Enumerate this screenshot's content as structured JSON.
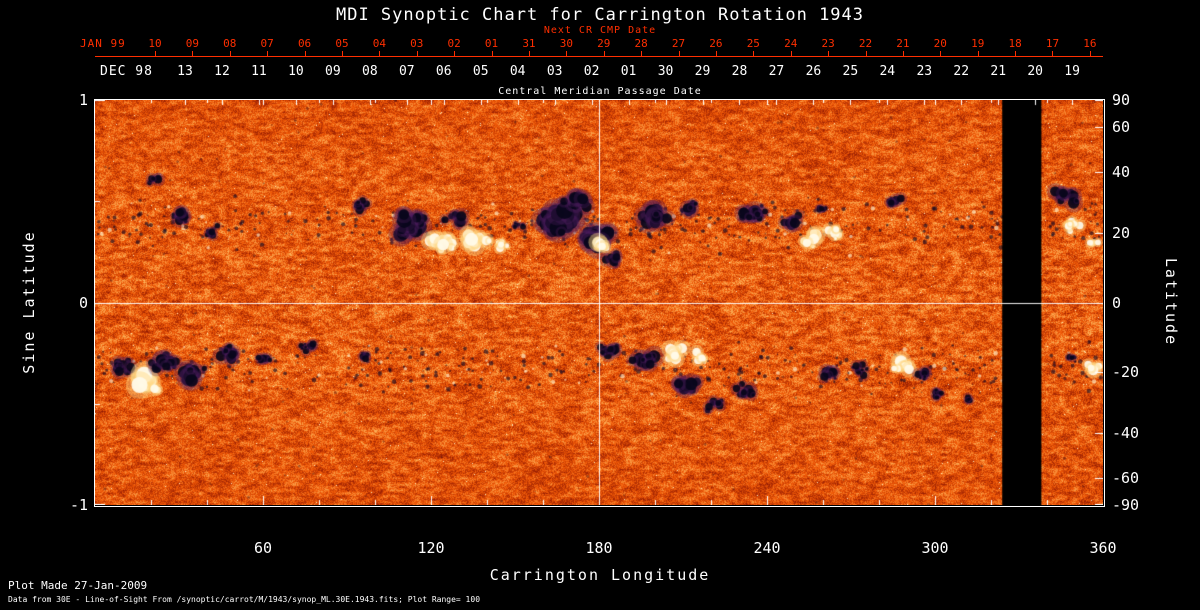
{
  "title": "MDI Synoptic Chart for Carrington Rotation 1943",
  "colors": {
    "background": "#000000",
    "axis": "#ffffff",
    "next_cr_axis": "#ff2f00"
  },
  "next_cr_axis": {
    "label": "Next CR CMP Date",
    "month": "JAN 99",
    "ticks": [
      "10",
      "09",
      "08",
      "07",
      "06",
      "05",
      "04",
      "03",
      "02",
      "01",
      "31",
      "30",
      "29",
      "28",
      "27",
      "26",
      "25",
      "24",
      "23",
      "22",
      "21",
      "20",
      "19",
      "18",
      "17",
      "16"
    ]
  },
  "cmp_axis": {
    "label": "Central Meridian Passage Date",
    "month": "DEC 98",
    "ticks": [
      "13",
      "12",
      "11",
      "10",
      "09",
      "08",
      "07",
      "06",
      "05",
      "04",
      "03",
      "02",
      "01",
      "30",
      "29",
      "28",
      "27",
      "26",
      "25",
      "24",
      "23",
      "22",
      "21",
      "20",
      "19"
    ]
  },
  "x_axis": {
    "label": "Carrington Longitude",
    "ticks": [
      60,
      120,
      180,
      240,
      300,
      360
    ],
    "range": [
      0,
      360
    ]
  },
  "y_axis_left": {
    "label": "Sine Latitude",
    "ticks": [
      1,
      0,
      -1
    ],
    "range": [
      -1,
      1
    ]
  },
  "y_axis_right": {
    "label": "Latitude",
    "ticks": [
      90,
      60,
      40,
      20,
      0,
      -20,
      -40,
      -60,
      -90
    ]
  },
  "footer": {
    "line1": "Plot Made 27-Jan-2009",
    "line2": "Data from 30E - Line-of-Sight From /synoptic/carrot/M/1943/synop_ML.30E.1943.fits; Plot Range= 100"
  },
  "chart_data": {
    "type": "heatmap",
    "title": "MDI Synoptic Chart for Carrington Rotation 1943",
    "xlabel": "Carrington Longitude",
    "ylabel_left": "Sine Latitude",
    "ylabel_right": "Latitude",
    "xlim": [
      0,
      360
    ],
    "ylim": [
      -1,
      1
    ],
    "x_ticks": [
      60,
      120,
      180,
      240,
      300,
      360
    ],
    "y_ticks_sine": [
      1,
      0,
      -1
    ],
    "y_ticks_latitude": [
      90,
      60,
      40,
      20,
      0,
      -20,
      -40,
      -60,
      -90
    ],
    "colormap": "solar line-of-sight magnetogram: dark navy/black = strong negative flux, orange = weak field, white/yellow = strong positive flux, plot range +/-100",
    "reference_lines": {
      "longitude": 180,
      "sine_latitude": 0
    },
    "data_gap_longitude": [
      324,
      338
    ],
    "active_regions": [
      {
        "lon": 20,
        "sin_lat": 0.62,
        "polarity": "negative",
        "size": 7,
        "count": 6
      },
      {
        "lon": 31,
        "sin_lat": 0.42,
        "polarity": "negative",
        "size": 9,
        "count": 12
      },
      {
        "lon": 41,
        "sin_lat": 0.35,
        "polarity": "negative",
        "size": 7,
        "count": 8
      },
      {
        "lon": 95,
        "sin_lat": 0.48,
        "polarity": "negative",
        "size": 8,
        "count": 9
      },
      {
        "lon": 112,
        "sin_lat": 0.38,
        "polarity": "negative",
        "size": 14,
        "count": 22
      },
      {
        "lon": 128,
        "sin_lat": 0.42,
        "polarity": "negative",
        "size": 9,
        "count": 10
      },
      {
        "lon": 124,
        "sin_lat": 0.3,
        "polarity": "positive",
        "size": 13,
        "count": 11
      },
      {
        "lon": 136,
        "sin_lat": 0.31,
        "polarity": "positive",
        "size": 12,
        "count": 9
      },
      {
        "lon": 144,
        "sin_lat": 0.29,
        "polarity": "positive",
        "size": 9,
        "count": 7
      },
      {
        "lon": 152,
        "sin_lat": 0.38,
        "polarity": "negative",
        "size": 7,
        "count": 7
      },
      {
        "lon": 165,
        "sin_lat": 0.4,
        "polarity": "negative",
        "size": 16,
        "count": 26
      },
      {
        "lon": 178,
        "sin_lat": 0.32,
        "polarity": "negative",
        "size": 14,
        "count": 22
      },
      {
        "lon": 186,
        "sin_lat": 0.22,
        "polarity": "negative",
        "size": 8,
        "count": 8
      },
      {
        "lon": 181,
        "sin_lat": 0.28,
        "polarity": "positive",
        "size": 10,
        "count": 8
      },
      {
        "lon": 172,
        "sin_lat": 0.5,
        "polarity": "negative",
        "size": 11,
        "count": 12
      },
      {
        "lon": 200,
        "sin_lat": 0.42,
        "polarity": "negative",
        "size": 12,
        "count": 15
      },
      {
        "lon": 213,
        "sin_lat": 0.47,
        "polarity": "negative",
        "size": 8,
        "count": 9
      },
      {
        "lon": 235,
        "sin_lat": 0.44,
        "polarity": "negative",
        "size": 11,
        "count": 14
      },
      {
        "lon": 249,
        "sin_lat": 0.41,
        "polarity": "negative",
        "size": 9,
        "count": 10
      },
      {
        "lon": 255,
        "sin_lat": 0.31,
        "polarity": "positive",
        "size": 11,
        "count": 9
      },
      {
        "lon": 264,
        "sin_lat": 0.33,
        "polarity": "positive",
        "size": 8,
        "count": 6
      },
      {
        "lon": 259,
        "sin_lat": 0.46,
        "polarity": "negative",
        "size": 6,
        "count": 7
      },
      {
        "lon": 285,
        "sin_lat": 0.5,
        "polarity": "negative",
        "size": 7,
        "count": 7
      },
      {
        "lon": 347,
        "sin_lat": 0.52,
        "polarity": "negative",
        "size": 10,
        "count": 12
      },
      {
        "lon": 349,
        "sin_lat": 0.38,
        "polarity": "positive",
        "size": 9,
        "count": 7
      },
      {
        "lon": 357,
        "sin_lat": 0.29,
        "polarity": "positive",
        "size": 6,
        "count": 5
      },
      {
        "lon": 10,
        "sin_lat": -0.32,
        "polarity": "negative",
        "size": 9,
        "count": 11
      },
      {
        "lon": 17,
        "sin_lat": -0.4,
        "polarity": "positive",
        "size": 14,
        "count": 12
      },
      {
        "lon": 25,
        "sin_lat": -0.3,
        "polarity": "negative",
        "size": 12,
        "count": 16
      },
      {
        "lon": 35,
        "sin_lat": -0.36,
        "polarity": "negative",
        "size": 11,
        "count": 14
      },
      {
        "lon": 48,
        "sin_lat": -0.25,
        "polarity": "negative",
        "size": 9,
        "count": 12
      },
      {
        "lon": 61,
        "sin_lat": -0.28,
        "polarity": "negative",
        "size": 7,
        "count": 9
      },
      {
        "lon": 76,
        "sin_lat": -0.22,
        "polarity": "negative",
        "size": 7,
        "count": 9
      },
      {
        "lon": 96,
        "sin_lat": -0.26,
        "polarity": "negative",
        "size": 6,
        "count": 7
      },
      {
        "lon": 183,
        "sin_lat": -0.24,
        "polarity": "negative",
        "size": 9,
        "count": 11
      },
      {
        "lon": 196,
        "sin_lat": -0.28,
        "polarity": "negative",
        "size": 11,
        "count": 14
      },
      {
        "lon": 206,
        "sin_lat": -0.25,
        "polarity": "positive",
        "size": 11,
        "count": 9
      },
      {
        "lon": 215,
        "sin_lat": -0.27,
        "polarity": "positive",
        "size": 8,
        "count": 6
      },
      {
        "lon": 210,
        "sin_lat": -0.4,
        "polarity": "negative",
        "size": 11,
        "count": 13
      },
      {
        "lon": 221,
        "sin_lat": -0.5,
        "polarity": "negative",
        "size": 8,
        "count": 9
      },
      {
        "lon": 231,
        "sin_lat": -0.44,
        "polarity": "negative",
        "size": 9,
        "count": 11
      },
      {
        "lon": 262,
        "sin_lat": -0.35,
        "polarity": "negative",
        "size": 8,
        "count": 9
      },
      {
        "lon": 273,
        "sin_lat": -0.33,
        "polarity": "negative",
        "size": 8,
        "count": 9
      },
      {
        "lon": 288,
        "sin_lat": -0.32,
        "polarity": "positive",
        "size": 11,
        "count": 9
      },
      {
        "lon": 296,
        "sin_lat": -0.36,
        "polarity": "negative",
        "size": 7,
        "count": 9
      },
      {
        "lon": 301,
        "sin_lat": -0.46,
        "polarity": "negative",
        "size": 7,
        "count": 9
      },
      {
        "lon": 312,
        "sin_lat": -0.48,
        "polarity": "negative",
        "size": 6,
        "count": 7
      },
      {
        "lon": 350,
        "sin_lat": -0.27,
        "polarity": "negative",
        "size": 6,
        "count": 7
      },
      {
        "lon": 356,
        "sin_lat": -0.33,
        "polarity": "positive",
        "size": 9,
        "count": 6
      }
    ],
    "speckle_bands": [
      {
        "sin_center": 0.38,
        "sin_spread": 0.17,
        "count": 420
      },
      {
        "sin_center": -0.33,
        "sin_spread": 0.17,
        "count": 420
      }
    ]
  }
}
